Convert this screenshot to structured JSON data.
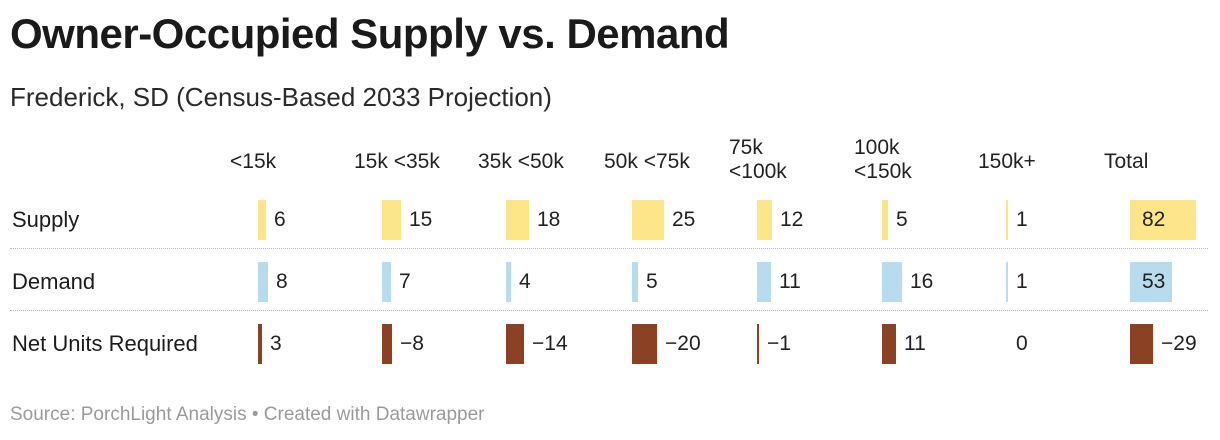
{
  "title": "Owner-Occupied Supply vs. Demand",
  "subtitle": "Frederick, SD (Census-Based 2033 Projection)",
  "source": "Source: PorchLight Analysis • Created with Datawrapper",
  "colors": {
    "supply": "#fde68a",
    "demand": "#b7dcee",
    "net": "#8b4123"
  },
  "chart_data": {
    "type": "table",
    "columns": [
      "<15k",
      "15k <35k",
      "35k <50k",
      "50k <75k",
      "75k\n<100k",
      "100k\n<150k",
      "150k+",
      "Total"
    ],
    "rows": [
      {
        "label": "Supply",
        "values": [
          6,
          15,
          18,
          25,
          12,
          5,
          1,
          82
        ],
        "display": [
          "6",
          "15",
          "18",
          "25",
          "12",
          "5",
          "1",
          "82"
        ]
      },
      {
        "label": "Demand",
        "values": [
          8,
          7,
          4,
          5,
          11,
          16,
          1,
          53
        ],
        "display": [
          "8",
          "7",
          "4",
          "5",
          "11",
          "16",
          "1",
          "53"
        ]
      },
      {
        "label": "Net Units Required",
        "values": [
          3,
          -8,
          -14,
          -20,
          -1,
          11,
          0,
          -29
        ],
        "display": [
          "3",
          "−8",
          "−14",
          "−20",
          "−1",
          "11",
          "0",
          "−29"
        ]
      }
    ]
  }
}
